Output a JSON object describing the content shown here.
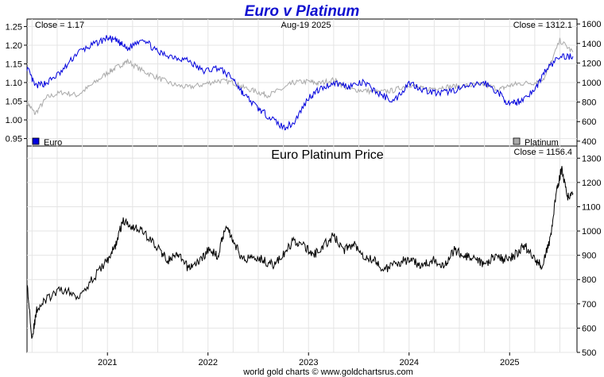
{
  "chart_data": [
    {
      "type": "line",
      "title": "Euro v Platinum",
      "date_label": "Aug-19  2025",
      "left_close_label": "Close = 1.17",
      "right_close_label": "Close = 1312.1",
      "left_axis": {
        "ylim": [
          0.93,
          1.27
        ],
        "ticks": [
          "0.95",
          "1.00",
          "1.05",
          "1.10",
          "1.15",
          "1.20",
          "1.25"
        ]
      },
      "right_axis": {
        "ylim": [
          350,
          1650
        ],
        "ticks": [
          "400",
          "600",
          "800",
          "1000",
          "1200",
          "1400",
          "1600"
        ]
      },
      "legend": [
        {
          "name": "Euro",
          "color": "#0000dd",
          "placement": "bottom-left"
        },
        {
          "name": "Platinum",
          "color": "#aaaaaa",
          "placement": "bottom-right"
        }
      ],
      "series": [
        {
          "name": "Euro",
          "axis": "left",
          "color": "#0000dd",
          "x": [
            2020.2,
            2020.28,
            2020.4,
            2020.55,
            2020.7,
            2020.85,
            2021.0,
            2021.1,
            2021.2,
            2021.35,
            2021.5,
            2021.65,
            2021.8,
            2021.95,
            2022.1,
            2022.25,
            2022.35,
            2022.5,
            2022.6,
            2022.75,
            2022.85,
            2023.0,
            2023.1,
            2023.25,
            2023.4,
            2023.55,
            2023.7,
            2023.85,
            2024.0,
            2024.15,
            2024.3,
            2024.45,
            2024.6,
            2024.75,
            2024.9,
            2025.0,
            2025.1,
            2025.25,
            2025.35,
            2025.5,
            2025.63
          ],
          "y": [
            1.14,
            1.09,
            1.1,
            1.13,
            1.18,
            1.2,
            1.22,
            1.21,
            1.19,
            1.22,
            1.18,
            1.17,
            1.16,
            1.13,
            1.14,
            1.11,
            1.07,
            1.03,
            1.01,
            0.98,
            0.99,
            1.06,
            1.08,
            1.1,
            1.09,
            1.1,
            1.07,
            1.05,
            1.1,
            1.08,
            1.07,
            1.08,
            1.09,
            1.1,
            1.07,
            1.04,
            1.05,
            1.08,
            1.13,
            1.17,
            1.17
          ]
        },
        {
          "name": "Platinum",
          "axis": "right",
          "color": "#aaaaaa",
          "x": [
            2020.2,
            2020.28,
            2020.4,
            2020.55,
            2020.7,
            2020.85,
            2021.0,
            2021.1,
            2021.2,
            2021.35,
            2021.5,
            2021.65,
            2021.8,
            2021.95,
            2022.1,
            2022.25,
            2022.35,
            2022.5,
            2022.6,
            2022.75,
            2022.85,
            2023.0,
            2023.1,
            2023.25,
            2023.4,
            2023.55,
            2023.7,
            2023.85,
            2024.0,
            2024.15,
            2024.3,
            2024.45,
            2024.6,
            2024.75,
            2024.9,
            2025.0,
            2025.1,
            2025.25,
            2025.35,
            2025.5,
            2025.63
          ],
          "y": [
            800,
            680,
            850,
            900,
            870,
            980,
            1100,
            1160,
            1220,
            1120,
            1050,
            980,
            950,
            980,
            1020,
            1000,
            950,
            900,
            870,
            940,
            1000,
            1010,
            990,
            1030,
            930,
            920,
            900,
            920,
            980,
            930,
            950,
            960,
            970,
            980,
            930,
            970,
            990,
            1000,
            1050,
            1430,
            1312
          ]
        }
      ]
    },
    {
      "type": "line",
      "title": "Euro Platinum Price",
      "close_label": "Close = 1156.4",
      "ylim": [
        500,
        1350
      ],
      "y_ticks": [
        "500",
        "600",
        "700",
        "800",
        "900",
        "1000",
        "1100",
        "1200",
        "1300"
      ],
      "x_ticks": [
        "2021",
        "2022",
        "2023",
        "2024",
        "2025"
      ],
      "x_range": [
        2020.2,
        2025.67
      ],
      "series": [
        {
          "name": "Euro Platinum Price",
          "color": "#000000",
          "x": [
            2020.2,
            2020.25,
            2020.3,
            2020.4,
            2020.55,
            2020.7,
            2020.85,
            2021.0,
            2021.08,
            2021.15,
            2021.25,
            2021.35,
            2021.5,
            2021.6,
            2021.7,
            2021.8,
            2021.9,
            2022.0,
            2022.1,
            2022.18,
            2022.25,
            2022.35,
            2022.45,
            2022.55,
            2022.65,
            2022.75,
            2022.85,
            2022.95,
            2023.05,
            2023.15,
            2023.25,
            2023.35,
            2023.45,
            2023.55,
            2023.65,
            2023.75,
            2023.85,
            2023.95,
            2024.05,
            2024.15,
            2024.25,
            2024.35,
            2024.45,
            2024.55,
            2024.65,
            2024.75,
            2024.85,
            2024.95,
            2025.05,
            2025.15,
            2025.25,
            2025.32,
            2025.4,
            2025.47,
            2025.52,
            2025.57,
            2025.63
          ],
          "y": [
            780,
            560,
            680,
            720,
            760,
            730,
            800,
            880,
            940,
            1040,
            1020,
            1000,
            930,
            880,
            900,
            850,
            870,
            920,
            900,
            1030,
            960,
            880,
            900,
            880,
            860,
            900,
            960,
            940,
            900,
            940,
            980,
            920,
            950,
            900,
            880,
            840,
            860,
            880,
            870,
            860,
            880,
            860,
            920,
            900,
            880,
            860,
            900,
            880,
            900,
            940,
            880,
            860,
            960,
            1170,
            1260,
            1140,
            1156
          ]
        }
      ]
    }
  ],
  "footer": "world gold charts © www.goldchartsrus.com"
}
